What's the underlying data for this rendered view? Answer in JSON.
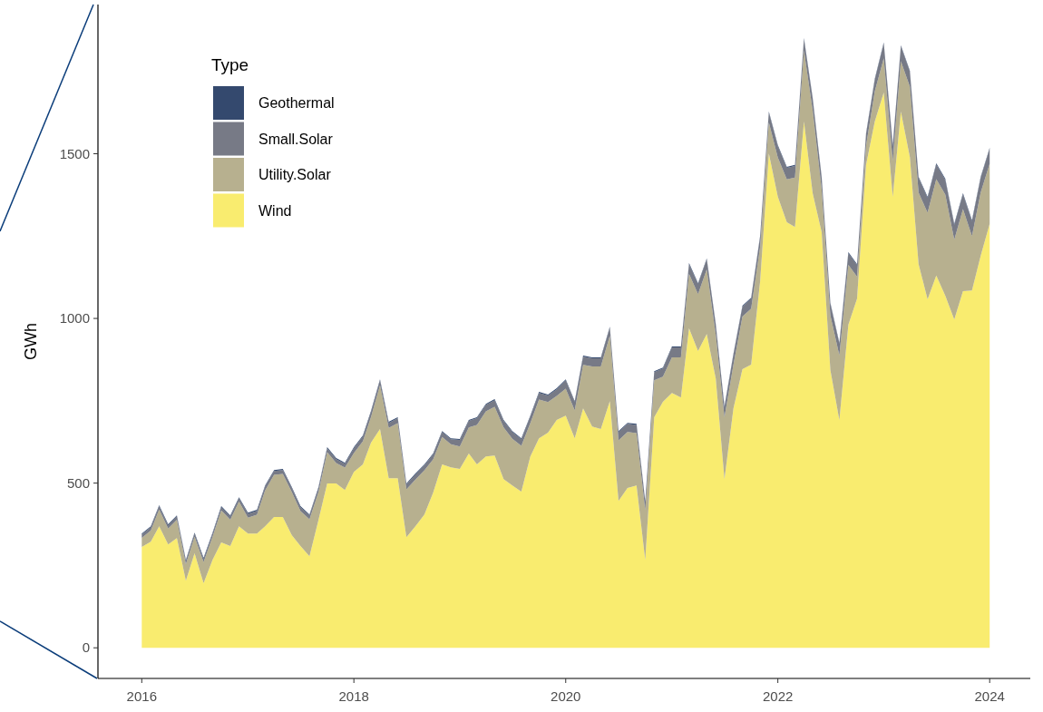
{
  "chart_data": {
    "type": "area",
    "stacked": true,
    "ylabel": "GWh",
    "legend_title": "Type",
    "legend": "top left",
    "grid": false,
    "x": [
      "2016-01",
      "2016-02",
      "2016-03",
      "2016-04",
      "2016-05",
      "2016-06",
      "2016-07",
      "2016-08",
      "2016-09",
      "2016-10",
      "2016-11",
      "2016-12",
      "2017-01",
      "2017-02",
      "2017-03",
      "2017-04",
      "2017-05",
      "2017-06",
      "2017-07",
      "2017-08",
      "2017-09",
      "2017-10",
      "2017-11",
      "2017-12",
      "2018-01",
      "2018-02",
      "2018-03",
      "2018-04",
      "2018-05",
      "2018-06",
      "2018-07",
      "2018-08",
      "2018-09",
      "2018-10",
      "2018-11",
      "2018-12",
      "2019-01",
      "2019-02",
      "2019-03",
      "2019-04",
      "2019-05",
      "2019-06",
      "2019-07",
      "2019-08",
      "2019-09",
      "2019-10",
      "2019-11",
      "2019-12",
      "2020-01",
      "2020-02",
      "2020-03",
      "2020-04",
      "2020-05",
      "2020-06",
      "2020-07",
      "2020-08",
      "2020-09",
      "2020-10",
      "2020-11",
      "2020-12",
      "2021-01",
      "2021-02",
      "2021-03",
      "2021-04",
      "2021-05",
      "2021-06",
      "2021-07",
      "2021-08",
      "2021-09",
      "2021-10",
      "2021-11",
      "2021-12",
      "2022-01",
      "2022-02",
      "2022-03",
      "2022-04",
      "2022-05",
      "2022-06",
      "2022-07",
      "2022-08",
      "2022-09",
      "2022-10",
      "2022-11",
      "2022-12",
      "2023-01",
      "2023-02",
      "2023-03",
      "2023-04",
      "2023-05",
      "2023-06",
      "2023-07",
      "2023-08",
      "2023-09",
      "2023-10",
      "2023-11",
      "2023-12",
      "2024-01"
    ],
    "xlim": [
      "2015-08-03",
      "2024-05-20"
    ],
    "xticks": [
      "2016",
      "2018",
      "2020",
      "2022",
      "2024"
    ],
    "ylim": [
      -93,
      1953
    ],
    "yticks": [
      0,
      500,
      1000,
      1500
    ],
    "series": [
      {
        "name": "Wind",
        "color": "#f9ec6f",
        "values": [
          306,
          322,
          369,
          314,
          333,
          204,
          287,
          196,
          267,
          320,
          309,
          369,
          347,
          347,
          369,
          397,
          397,
          342,
          309,
          278,
          388,
          499,
          499,
          479,
          534,
          557,
          623,
          664,
          515,
          515,
          336,
          369,
          405,
          471,
          557,
          548,
          543,
          590,
          557,
          581,
          584,
          512,
          493,
          474,
          581,
          636,
          653,
          692,
          705,
          636,
          727,
          672,
          664,
          749,
          446,
          485,
          493,
          267,
          700,
          747,
          774,
          760,
          970,
          901,
          953,
          818,
          512,
          727,
          846,
          860,
          1113,
          1501,
          1369,
          1292,
          1278,
          1598,
          1380,
          1262,
          843,
          691,
          981,
          1060,
          1466,
          1598,
          1686,
          1369,
          1628,
          1490,
          1165,
          1058,
          1130,
          1069,
          997,
          1083,
          1085,
          1190,
          1287
        ]
      },
      {
        "name": "Utility.Solar",
        "color": "#b7b08f",
        "values": [
          28,
          34,
          51,
          48,
          56,
          50,
          50,
          64,
          70,
          97,
          80,
          75,
          48,
          57,
          109,
          128,
          131,
          131,
          106,
          112,
          85,
          95,
          62,
          68,
          57,
          70,
          78,
          133,
          153,
          167,
          145,
          142,
          134,
          101,
          83,
          70,
          68,
          79,
          120,
          137,
          148,
          157,
          142,
          139,
          101,
          118,
          93,
          73,
          82,
          85,
          132,
          182,
          190,
          198,
          184,
          170,
          159,
          151,
          112,
          76,
          108,
          122,
          165,
          173,
          196,
          133,
          188,
          133,
          160,
          170,
          105,
          94,
          119,
          130,
          150,
          215,
          252,
          130,
          166,
          197,
          182,
          67,
          58,
          91,
          104,
          109,
          153,
          214,
          217,
          263,
          293,
          307,
          242,
          249,
          165,
          192,
          183
        ]
      },
      {
        "name": "Small.Solar",
        "color": "#777a86",
        "values": [
          10,
          10,
          10,
          10,
          10,
          10,
          10,
          10,
          10,
          10,
          10,
          10,
          12,
          12,
          12,
          12,
          12,
          12,
          12,
          12,
          12,
          12,
          12,
          12,
          15,
          15,
          15,
          15,
          15,
          15,
          15,
          15,
          15,
          15,
          15,
          15,
          20,
          20,
          20,
          20,
          20,
          20,
          20,
          20,
          20,
          20,
          20,
          20,
          25,
          25,
          25,
          25,
          25,
          25,
          25,
          25,
          25,
          25,
          25,
          25,
          30,
          30,
          30,
          30,
          30,
          30,
          30,
          30,
          30,
          30,
          30,
          30,
          35,
          35,
          35,
          35,
          35,
          35,
          35,
          35,
          35,
          35,
          35,
          35,
          45,
          45,
          45,
          45,
          45,
          45,
          45,
          45,
          45,
          45,
          45,
          45,
          45
        ]
      },
      {
        "name": "Geothermal",
        "color": "#34496e",
        "values": [
          3,
          3,
          3,
          3,
          3,
          3,
          3,
          3,
          3,
          3,
          3,
          3,
          3,
          3,
          3,
          3,
          3,
          3,
          3,
          3,
          3,
          3,
          3,
          3,
          3,
          3,
          3,
          3,
          3,
          3,
          3,
          3,
          3,
          3,
          3,
          3,
          3,
          3,
          3,
          3,
          3,
          3,
          3,
          3,
          3,
          3,
          3,
          3,
          3,
          3,
          3,
          3,
          3,
          3,
          3,
          3,
          3,
          3,
          3,
          3,
          3,
          3,
          3,
          3,
          3,
          3,
          3,
          3,
          3,
          3,
          3,
          3,
          3,
          3,
          3,
          3,
          3,
          3,
          3,
          3,
          3,
          3,
          3,
          3,
          3,
          3,
          3,
          3,
          3,
          3,
          3,
          3,
          3,
          3,
          3,
          3,
          3
        ]
      }
    ]
  }
}
